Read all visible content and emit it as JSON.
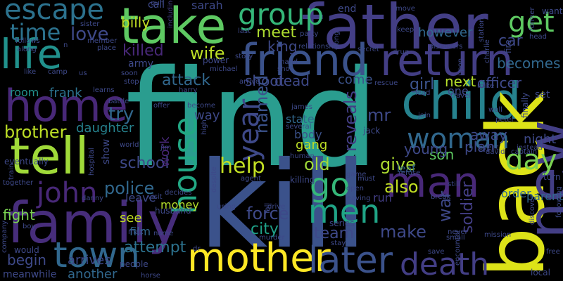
{
  "words": [
    {
      "text": "find",
      "color": "#2a9d8f"
    },
    {
      "text": "kill",
      "color": "#3b528b"
    },
    {
      "text": "father",
      "color": "#433e85"
    },
    {
      "text": "family",
      "color": "#472d7b"
    },
    {
      "text": "take",
      "color": "#5ec962"
    },
    {
      "text": "friend",
      "color": "#3b528b"
    },
    {
      "text": "return",
      "color": "#433e85"
    },
    {
      "text": "life",
      "color": "#21918c"
    },
    {
      "text": "home",
      "color": "#482878"
    },
    {
      "text": "tell",
      "color": "#a0da39"
    },
    {
      "text": "child",
      "color": "#26828e"
    },
    {
      "text": "back",
      "color": "#dde318"
    },
    {
      "text": "new",
      "color": "#433e85"
    },
    {
      "text": "man",
      "color": "#482878"
    },
    {
      "text": "mother",
      "color": "#fde725"
    },
    {
      "text": "later",
      "color": "#3b528b"
    },
    {
      "text": "death",
      "color": "#433e85"
    },
    {
      "text": "town",
      "color": "#31688e"
    },
    {
      "text": "escape",
      "color": "#2c728e"
    },
    {
      "text": "group",
      "color": "#35b779"
    },
    {
      "text": "get",
      "color": "#5ec962"
    },
    {
      "text": "house",
      "color": "#22a884"
    },
    {
      "text": "woman",
      "color": "#31688e"
    },
    {
      "text": "go",
      "color": "#35b779"
    },
    {
      "text": "men",
      "color": "#20a486"
    },
    {
      "text": "john",
      "color": "#482878"
    },
    {
      "text": "year",
      "color": "#3e4989"
    },
    {
      "text": "day",
      "color": "#7ad151"
    },
    {
      "text": "help",
      "color": "#c2df23"
    },
    {
      "text": "billy",
      "color": "#c2df23"
    },
    {
      "text": "time",
      "color": "#2c728e"
    },
    {
      "text": "love",
      "color": "#3e4989"
    },
    {
      "text": "killed",
      "color": "#482878"
    },
    {
      "text": "wife",
      "color": "#bddf26"
    },
    {
      "text": "meet",
      "color": "#addc30"
    },
    {
      "text": "king",
      "color": "#3e4989"
    },
    {
      "text": "car",
      "color": "#3e4989"
    },
    {
      "text": "however",
      "color": "#31688e"
    },
    {
      "text": "becomes",
      "color": "#31688e"
    },
    {
      "text": "attack",
      "color": "#31688e"
    },
    {
      "text": "shoot",
      "color": "#3e4989"
    },
    {
      "text": "dead",
      "color": "#3e4989"
    },
    {
      "text": "come",
      "color": "#3b528b"
    },
    {
      "text": "girl",
      "color": "#3b528b"
    },
    {
      "text": "next",
      "color": "#b5de2b"
    },
    {
      "text": "officer",
      "color": "#3e4989"
    },
    {
      "text": "room",
      "color": "#21918c"
    },
    {
      "text": "frank",
      "color": "#2c728e"
    },
    {
      "text": "try",
      "color": "#31688e"
    },
    {
      "text": "brother",
      "color": "#bddf26"
    },
    {
      "text": "daughter",
      "color": "#26828e"
    },
    {
      "text": "named",
      "color": "#3b528b"
    },
    {
      "text": "reveals",
      "color": "#433e85"
    },
    {
      "text": "mr",
      "color": "#3e4989"
    },
    {
      "text": "son",
      "color": "#5ec962"
    },
    {
      "text": "away",
      "color": "#3e4989"
    },
    {
      "text": "night",
      "color": "#3e4989"
    },
    {
      "text": "plan",
      "color": "#3e4989"
    },
    {
      "text": "young",
      "color": "#3e4989"
    },
    {
      "text": "school",
      "color": "#3e4989"
    },
    {
      "text": "police",
      "color": "#31688e"
    },
    {
      "text": "old",
      "color": "#a0da39"
    },
    {
      "text": "give",
      "color": "#addc30"
    },
    {
      "text": "also",
      "color": "#c2df23"
    },
    {
      "text": "force",
      "color": "#3e4989"
    },
    {
      "text": "city",
      "color": "#1fa188"
    },
    {
      "text": "team",
      "color": "#3e4989"
    },
    {
      "text": "make",
      "color": "#3e4989"
    },
    {
      "text": "war",
      "color": "#3e4989"
    },
    {
      "text": "soldier",
      "color": "#433e85"
    },
    {
      "text": "order",
      "color": "#31688e"
    },
    {
      "text": "parent",
      "color": "#31688e"
    },
    {
      "text": "fight",
      "color": "#7ad151"
    },
    {
      "text": "leave",
      "color": "#3e4989"
    },
    {
      "text": "money",
      "color": "#b5de2b"
    },
    {
      "text": "begin",
      "color": "#3e4989"
    },
    {
      "text": "attempt",
      "color": "#2c728e"
    },
    {
      "text": "film",
      "color": "#31688e"
    },
    {
      "text": "another",
      "color": "#31688e"
    },
    {
      "text": "gang",
      "color": "#bddf26"
    },
    {
      "text": "body",
      "color": "#3b528b"
    },
    {
      "text": "state",
      "color": "#31688e"
    },
    {
      "text": "work",
      "color": "#482878"
    },
    {
      "text": "way",
      "color": "#3e4989"
    },
    {
      "text": "leaf",
      "color": "#31688e"
    },
    {
      "text": "run",
      "color": "#433e85"
    },
    {
      "text": "see",
      "color": "#c2df23"
    },
    {
      "text": "arrives",
      "color": "#3e4989"
    },
    {
      "text": "sarah",
      "color": "#3e4989"
    },
    {
      "text": "meanwhile",
      "color": "#3e4989"
    },
    {
      "text": "army",
      "color": "#3e4989"
    },
    {
      "text": "one",
      "color": "#3e4989"
    },
    {
      "text": "set",
      "color": "#3e4989"
    },
    {
      "text": "call",
      "color": "#3e4989"
    },
    {
      "text": "end",
      "color": "#3e4989"
    },
    {
      "text": "including",
      "color": "#433e85"
    },
    {
      "text": "eventually",
      "color": "#3e4989"
    },
    {
      "text": "show",
      "color": "#3e4989"
    },
    {
      "text": "world",
      "color": "#3e4989"
    },
    {
      "text": "killing",
      "color": "#3e4989"
    },
    {
      "text": "agent",
      "color": "#3e4989"
    },
    {
      "text": "series",
      "color": "#3e4989"
    },
    {
      "text": "husband",
      "color": "#3e4989"
    },
    {
      "text": "people",
      "color": "#3e4989"
    },
    {
      "text": "name",
      "color": "#3e4989"
    },
    {
      "text": "horse",
      "color": "#3e4989"
    },
    {
      "text": "mission",
      "color": "#3e4989"
    },
    {
      "text": "local",
      "color": "#3e4989"
    },
    {
      "text": "free",
      "color": "#3e4989"
    },
    {
      "text": "would",
      "color": "#3e4989"
    },
    {
      "text": "james",
      "color": "#3e4989"
    },
    {
      "text": "jack",
      "color": "#3e4989"
    },
    {
      "text": "harry",
      "color": "#3e4989"
    },
    {
      "text": "michael",
      "color": "#3e4989"
    },
    {
      "text": "power",
      "color": "#3e4989"
    },
    {
      "text": "peter",
      "color": "#3e4989"
    },
    {
      "text": "david",
      "color": "#3e4989"
    },
    {
      "text": "event",
      "color": "#3e4989"
    },
    {
      "text": "save",
      "color": "#3e4989"
    },
    {
      "text": "game",
      "color": "#3e4989"
    },
    {
      "text": "stay",
      "color": "#3e4989"
    },
    {
      "text": "break",
      "color": "#3e4989"
    },
    {
      "text": "learns",
      "color": "#3e4989"
    },
    {
      "text": "stop",
      "color": "#3e4989"
    },
    {
      "text": "like",
      "color": "#3e4989"
    },
    {
      "text": "camp",
      "color": "#3e4989"
    },
    {
      "text": "us",
      "color": "#3e4989"
    },
    {
      "text": "soon",
      "color": "#3e4989"
    },
    {
      "text": "place",
      "color": "#3e4989"
    },
    {
      "text": "sister",
      "color": "#3e4989"
    },
    {
      "text": "member",
      "color": "#3e4989"
    },
    {
      "text": "follows",
      "color": "#3e4989"
    },
    {
      "text": "along",
      "color": "#3e4989"
    },
    {
      "text": "relationship",
      "color": "#3e4989"
    },
    {
      "text": "secret",
      "color": "#3e4989"
    },
    {
      "text": "drug",
      "color": "#3e4989"
    },
    {
      "text": "discovers",
      "color": "#3e4989"
    },
    {
      "text": "party",
      "color": "#3e4989"
    },
    {
      "text": "last",
      "color": "#3e4989"
    },
    {
      "text": "story",
      "color": "#3e4989"
    },
    {
      "text": "hand",
      "color": "#3e4989"
    },
    {
      "text": "shot",
      "color": "#3e4989"
    },
    {
      "text": "arrive",
      "color": "#3e4989"
    },
    {
      "text": "rescue",
      "color": "#3e4989"
    },
    {
      "text": "move",
      "color": "#3e4989"
    },
    {
      "text": "keep",
      "color": "#3e4989"
    },
    {
      "text": "fire",
      "color": "#3e4989"
    },
    {
      "text": "head",
      "color": "#3e4989"
    },
    {
      "text": "want",
      "color": "#3e4989"
    },
    {
      "text": "former",
      "color": "#3e4989"
    },
    {
      "text": "charlie",
      "color": "#3e4989"
    },
    {
      "text": "station",
      "color": "#3e4989"
    },
    {
      "text": "long",
      "color": "#3e4989"
    },
    {
      "text": "upon",
      "color": "#3e4989"
    },
    {
      "text": "lead",
      "color": "#3e4989"
    },
    {
      "text": "travel",
      "color": "#3e4989"
    },
    {
      "text": "mike",
      "color": "#3e4989"
    },
    {
      "text": "well",
      "color": "#3e4989"
    },
    {
      "text": "finally",
      "color": "#3e4989"
    },
    {
      "text": "join",
      "color": "#3e4989"
    },
    {
      "text": "battle",
      "color": "#3e4989"
    },
    {
      "text": "offer",
      "color": "#3e4989"
    },
    {
      "text": "become",
      "color": "#3e4989"
    },
    {
      "text": "high",
      "color": "#3e4989"
    },
    {
      "text": "jim",
      "color": "#3e4989"
    },
    {
      "text": "danny",
      "color": "#3e4989"
    },
    {
      "text": "train",
      "color": "#3e4989"
    },
    {
      "text": "together",
      "color": "#3e4989"
    },
    {
      "text": "hospital",
      "color": "#3e4989"
    },
    {
      "text": "decides",
      "color": "#3e4989"
    },
    {
      "text": "visit",
      "color": "#3e4989"
    },
    {
      "text": "despite",
      "color": "#3e4989"
    },
    {
      "text": "using",
      "color": "#3e4989"
    },
    {
      "text": "fall",
      "color": "#3e4989"
    },
    {
      "text": "drive",
      "color": "#3e4989"
    },
    {
      "text": "murder",
      "color": "#3e4989"
    },
    {
      "text": "human",
      "color": "#3e4989"
    },
    {
      "text": "several",
      "color": "#3e4989"
    },
    {
      "text": "open",
      "color": "#3e4989"
    },
    {
      "text": "leaving",
      "color": "#3e4989"
    },
    {
      "text": "must",
      "color": "#3e4989"
    },
    {
      "text": "refuse",
      "color": "#3e4989"
    },
    {
      "text": "still",
      "color": "#3e4989"
    },
    {
      "text": "encounter",
      "color": "#3e4989"
    },
    {
      "text": "never",
      "color": "#3e4989"
    },
    {
      "text": "small",
      "color": "#3e4989"
    },
    {
      "text": "discover",
      "color": "#3e4989"
    },
    {
      "text": "following",
      "color": "#3e4989"
    },
    {
      "text": "captain",
      "color": "#3e4989"
    },
    {
      "text": "instead",
      "color": "#3e4989"
    },
    {
      "text": "turn",
      "color": "#3e4989"
    },
    {
      "text": "boy",
      "color": "#3e4989"
    },
    {
      "text": "company",
      "color": "#3e4989"
    },
    {
      "text": "max",
      "color": "#3e4989"
    },
    {
      "text": "dr",
      "color": "#3e4989"
    },
    {
      "text": "gun",
      "color": "#3e4989"
    },
    {
      "text": "n",
      "color": "#3e4989"
    }
  ]
}
